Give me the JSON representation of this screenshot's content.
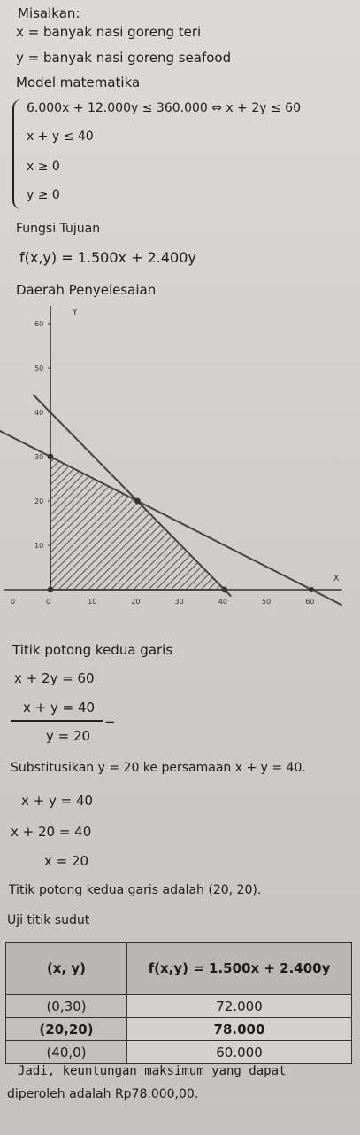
{
  "intro": {
    "heading": "Misalkan:",
    "var_x": "x = banyak nasi goreng teri",
    "var_y": "y = banyak nasi goreng seafood"
  },
  "model": {
    "heading": "Model matematika",
    "c1": "6.000x + 12.000y ≤ 360.000 ⇔ x + 2y ≤ 60",
    "c2": "x + y ≤ 40",
    "c3": "x ≥ 0",
    "c4": "y ≥ 0"
  },
  "objective": {
    "heading": "Fungsi Tujuan",
    "formula": "f(x,y) = 1.500x + 2.400y"
  },
  "region": {
    "heading": "Daerah Penyelesaian"
  },
  "graph": {
    "axis_x_label": "X",
    "axis_y_label": "Y",
    "x_ticks": [
      "0",
      "10",
      "20",
      "30",
      "40",
      "50",
      "60"
    ],
    "y_ticks": [
      "10",
      "20",
      "30",
      "40",
      "50",
      "60"
    ],
    "extra_origin_label": "0",
    "lines": [
      "x + 2y = 60",
      "x + y = 40"
    ],
    "vertices": [
      [
        0,
        0
      ],
      [
        0,
        30
      ],
      [
        20,
        20
      ],
      [
        40,
        0
      ]
    ]
  },
  "intersection": {
    "heading": "Titik potong kedua garis",
    "eq1": "x + 2y = 60",
    "eq2": "x + y = 40",
    "minus": "−",
    "result": "y = 20",
    "subst_text": "Substitusikan y = 20 ke persamaan x + y = 40.",
    "s1": "x + y = 40",
    "s2": "x + 20 = 40",
    "s3": "x = 20",
    "conclusion": "Titik potong kedua garis adalah (20, 20)."
  },
  "test": {
    "heading": "Uji titik sudut",
    "col_point": "(x, y)",
    "col_value": "f(x,y) = 1.500x + 2.400y",
    "rows": [
      {
        "point": "(0,30)",
        "value": "72.000"
      },
      {
        "point": "(20,20)",
        "value": "78.000"
      },
      {
        "point": "(40,0)",
        "value": "60.000"
      }
    ]
  },
  "final": {
    "line1": "Jadi, keuntungan maksimum yang dapat",
    "line2": "diperoleh adalah Rp78.000,00."
  }
}
